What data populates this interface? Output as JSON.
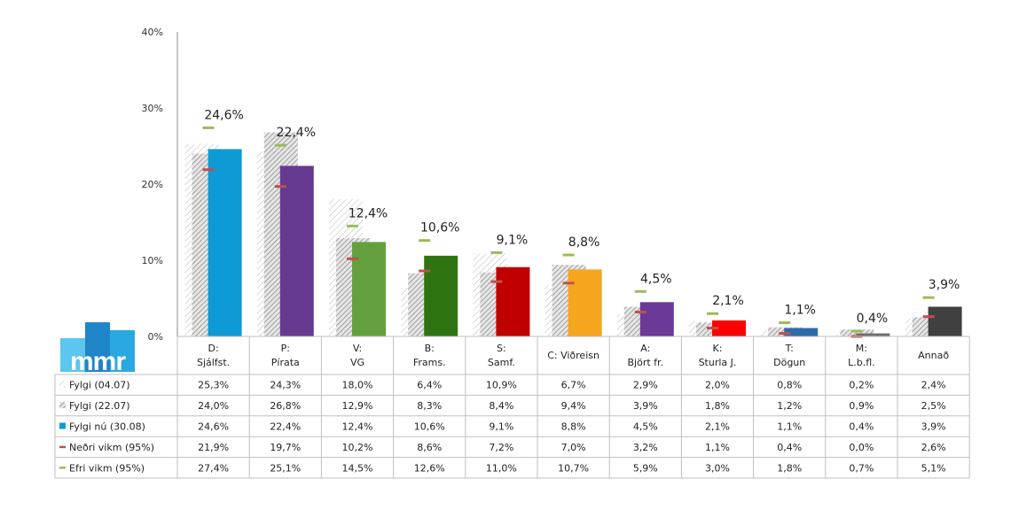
{
  "chart_data": {
    "type": "bar",
    "yticks": [
      "40%",
      "30%",
      "20%",
      "10%",
      "0%"
    ],
    "ylim": [
      0,
      40
    ],
    "grid": false,
    "categories": [
      {
        "line1": "D:",
        "line2": "Sjálfst."
      },
      {
        "line1": "P:",
        "line2": "Pírata"
      },
      {
        "line1": "V:",
        "line2": "VG"
      },
      {
        "line1": "B:",
        "line2": "Frams."
      },
      {
        "line1": "S:",
        "line2": "Samf."
      },
      {
        "line1": "C: Viðreisn",
        "line2": ""
      },
      {
        "line1": "A:",
        "line2": "Björt fr."
      },
      {
        "line1": "K:",
        "line2": "Sturla J."
      },
      {
        "line1": "T:",
        "line2": "Dögun"
      },
      {
        "line1": "M:",
        "line2": "L.b.fl."
      },
      {
        "line1": "Annað",
        "line2": ""
      }
    ],
    "current_colors": [
      "#0d9ad5",
      "#673a92",
      "#63a03d",
      "#2e7512",
      "#c00000",
      "#f5a61d",
      "#6a3a96",
      "#ff0000",
      "#2e6bad",
      "#707070",
      "#404040"
    ],
    "series": [
      {
        "name": "Fylgi (04.07)",
        "style": "hatch-light",
        "values": [
          25.3,
          24.3,
          18.0,
          6.4,
          10.9,
          6.7,
          2.9,
          2.0,
          0.8,
          0.2,
          2.4
        ],
        "labels": [
          "25,3%",
          "24,3%",
          "18,0%",
          "6,4%",
          "10,9%",
          "6,7%",
          "2,9%",
          "2,0%",
          "0,8%",
          "0,2%",
          "2,4%"
        ]
      },
      {
        "name": "Fylgi (22.07)",
        "style": "hatch-dark",
        "values": [
          24.0,
          26.8,
          12.9,
          8.3,
          8.4,
          9.4,
          3.9,
          1.8,
          1.2,
          0.9,
          2.5
        ],
        "labels": [
          "24,0%",
          "26,8%",
          "12,9%",
          "8,3%",
          "8,4%",
          "9,4%",
          "3,9%",
          "1,8%",
          "1,2%",
          "0,9%",
          "2,5%"
        ]
      },
      {
        "name": "Fylgi nú (30.08)",
        "style": "solid",
        "values": [
          24.6,
          22.4,
          12.4,
          10.6,
          9.1,
          8.8,
          4.5,
          2.1,
          1.1,
          0.4,
          3.9
        ],
        "labels": [
          "24,6%",
          "22,4%",
          "12,4%",
          "10,6%",
          "9,1%",
          "8,8%",
          "4,5%",
          "2,1%",
          "1,1%",
          "0,4%",
          "3,9%"
        ]
      },
      {
        "name": "Neðri vikm (95%)",
        "style": "marker",
        "color": "#c0504d",
        "values": [
          21.9,
          19.7,
          10.2,
          8.6,
          7.2,
          7.0,
          3.2,
          1.1,
          0.4,
          0.0,
          2.6
        ],
        "labels": [
          "21,9%",
          "19,7%",
          "10,2%",
          "8,6%",
          "7,2%",
          "7,0%",
          "3,2%",
          "1,1%",
          "0,4%",
          "0,0%",
          "2,6%"
        ]
      },
      {
        "name": "Efri vikm (95%)",
        "style": "marker",
        "color": "#9bbb59",
        "values": [
          27.4,
          25.1,
          14.5,
          12.6,
          11.0,
          10.7,
          5.9,
          3.0,
          1.8,
          0.7,
          5.1
        ],
        "labels": [
          "27,4%",
          "25,1%",
          "14,5%",
          "12,6%",
          "11,0%",
          "10,7%",
          "5,9%",
          "3,0%",
          "1,8%",
          "0,7%",
          "5,1%"
        ]
      }
    ]
  },
  "logo": {
    "text": "mmr",
    "colors": [
      "#1e86c8",
      "#2aa8e0",
      "#5cc6ef"
    ]
  },
  "colors": {
    "hatch": "#9a9a9a",
    "axis": "#8c8c8c",
    "table_border": "#bfbfbf"
  }
}
